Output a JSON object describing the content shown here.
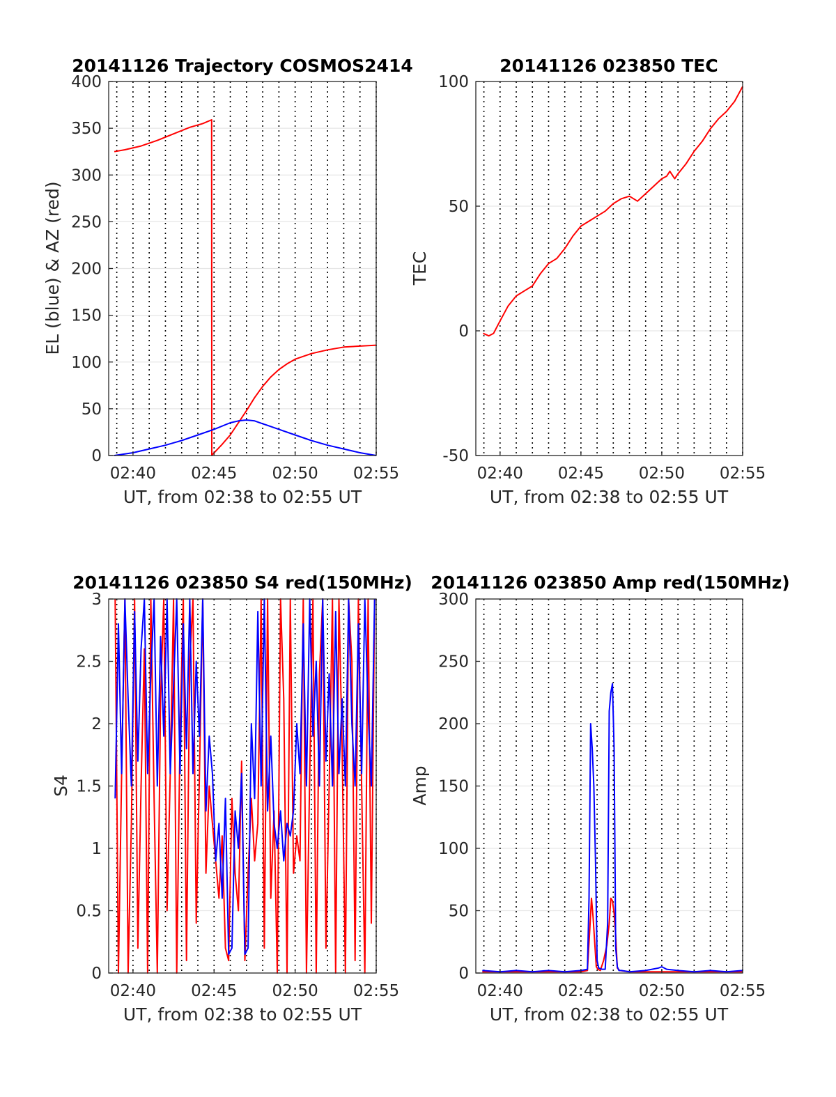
{
  "chart_data": [
    {
      "type": "line",
      "title": "20141126 Trajectory COSMOS2414",
      "xlabel": "UT, from 02:38 to 02:55 UT",
      "ylabel": "EL (blue) & AZ (red)",
      "x_unit": "minutes past 02:00 UT",
      "xlim": [
        38.5,
        55.0
      ],
      "ylim": [
        0,
        400
      ],
      "xticks": [
        40,
        45,
        50,
        55
      ],
      "xtick_labels": [
        "02:40",
        "02:45",
        "02:50",
        "02:55"
      ],
      "yticks": [
        0,
        50,
        100,
        150,
        200,
        250,
        300,
        350,
        400
      ],
      "ytick_labels": [
        "0",
        "50",
        "100",
        "150",
        "200",
        "250",
        "300",
        "350",
        "400"
      ],
      "grid": "dotted vertical lines every minute, horizontal lines at y ticks",
      "series": [
        {
          "color": "#ff0000",
          "x": [
            38.85,
            39.5,
            40.5,
            41.5,
            42.5,
            43.5,
            44.3,
            44.85,
            44.86,
            44.9,
            45.5,
            46.0,
            46.5,
            47.0,
            47.5,
            48.0,
            48.5,
            49.0,
            49.5,
            50.0,
            51.0,
            52.0,
            53.0,
            54.0,
            55.0
          ],
          "y": [
            325,
            327,
            331,
            337,
            344,
            351,
            355,
            359,
            0,
            1,
            12,
            22,
            35,
            48,
            62,
            74,
            84,
            92,
            98,
            103,
            109,
            113,
            116,
            117,
            118
          ]
        },
        {
          "color": "#0000ff",
          "x": [
            38.85,
            40,
            41,
            42,
            43,
            44,
            45,
            46,
            46.5,
            47.0,
            47.5,
            48,
            49,
            50,
            51,
            52,
            53,
            54,
            55
          ],
          "y": [
            0,
            3,
            7,
            11,
            16,
            22,
            28,
            35,
            37,
            38,
            37,
            34,
            28,
            22,
            16,
            11,
            7,
            3,
            0
          ]
        }
      ]
    },
    {
      "type": "line",
      "title": "20141126 023850 TEC",
      "xlabel": "UT, from 02:38 to 02:55 UT",
      "ylabel": "TEC",
      "x_unit": "minutes past 02:00 UT",
      "xlim": [
        38.5,
        55.0
      ],
      "ylim": [
        -50,
        100
      ],
      "xticks": [
        40,
        45,
        50,
        55
      ],
      "xtick_labels": [
        "02:40",
        "02:45",
        "02:50",
        "02:55"
      ],
      "yticks": [
        -50,
        0,
        50,
        100
      ],
      "ytick_labels": [
        "-50",
        "0",
        "50",
        "100"
      ],
      "grid": "dotted vertical lines every minute, horizontal lines at y ticks",
      "series": [
        {
          "color": "#ff0000",
          "x": [
            38.95,
            39.3,
            39.6,
            40.0,
            40.5,
            41.0,
            41.5,
            42.0,
            42.5,
            43.0,
            43.5,
            44.0,
            44.5,
            45.0,
            45.5,
            46.0,
            46.5,
            47.0,
            47.5,
            48.0,
            48.5,
            49.0,
            49.5,
            50.0,
            50.3,
            50.5,
            50.8,
            51.0,
            51.5,
            52.0,
            52.5,
            53.0,
            53.5,
            54.0,
            54.5,
            55.0
          ],
          "y": [
            -1,
            -2,
            -1,
            4,
            10,
            14,
            16,
            18,
            23,
            27,
            29,
            33,
            38,
            42,
            44,
            46,
            48,
            51,
            53,
            54,
            52,
            55,
            58,
            61,
            62,
            64,
            61,
            63,
            67,
            72,
            76,
            81,
            85,
            88,
            92,
            98
          ]
        }
      ]
    },
    {
      "type": "line",
      "title": "20141126 023850 S4 red(150MHz)",
      "xlabel": "UT, from 02:38 to 02:55 UT",
      "ylabel": "S4",
      "x_unit": "minutes past 02:00 UT",
      "xlim": [
        38.5,
        55.0
      ],
      "ylim": [
        0,
        3
      ],
      "xticks": [
        40,
        45,
        50,
        55
      ],
      "xtick_labels": [
        "02:40",
        "02:45",
        "02:50",
        "02:55"
      ],
      "yticks": [
        0,
        0.5,
        1,
        1.5,
        2,
        2.5,
        3
      ],
      "ytick_labels": [
        "0",
        "0.5",
        "1",
        "1.5",
        "2",
        "2.5",
        "3"
      ],
      "grid": "dotted vertical lines every minute, horizontal lines at y ticks",
      "series": [
        {
          "color": "#ff0000",
          "x": [
            38.9,
            39.1,
            39.3,
            39.5,
            39.7,
            39.9,
            40.1,
            40.3,
            40.5,
            40.7,
            40.9,
            41.1,
            41.3,
            41.5,
            41.7,
            41.9,
            42.1,
            42.3,
            42.5,
            42.7,
            42.9,
            43.1,
            43.3,
            43.5,
            43.7,
            43.9,
            44.1,
            44.3,
            44.5,
            44.7,
            44.9,
            45.1,
            45.3,
            45.5,
            45.7,
            45.9,
            46.1,
            46.3,
            46.5,
            46.7,
            46.9,
            47.1,
            47.3,
            47.5,
            47.7,
            47.9,
            48.1,
            48.3,
            48.5,
            48.7,
            48.9,
            49.1,
            49.3,
            49.5,
            49.7,
            49.9,
            50.1,
            50.3,
            50.5,
            50.7,
            50.9,
            51.1,
            51.3,
            51.5,
            51.7,
            51.9,
            52.1,
            52.3,
            52.5,
            52.7,
            52.9,
            53.1,
            53.3,
            53.5,
            53.7,
            53.9,
            54.1,
            54.3,
            54.5,
            54.7,
            54.9
          ],
          "y": [
            3,
            0,
            1.6,
            3,
            0,
            1.2,
            3,
            0.2,
            1.5,
            2.6,
            0,
            3,
            1.4,
            0,
            2.2,
            3,
            0.5,
            1.6,
            3,
            0,
            1.9,
            3,
            0.1,
            2.5,
            3,
            0.4,
            1.6,
            3,
            0.8,
            1.5,
            1.2,
            0.9,
            0.6,
            1.1,
            0.2,
            0.1,
            1.4,
            0.8,
            0.5,
            1.7,
            0.1,
            0.8,
            1.4,
            0.9,
            1.2,
            3,
            0.2,
            3,
            0.6,
            1.3,
            0,
            3,
            2.2,
            0,
            3,
            0.8,
            1.1,
            0.9,
            3,
            0,
            1.6,
            3,
            0,
            2.4,
            3,
            0.2,
            1.5,
            3,
            0,
            3,
            1.8,
            0,
            3,
            2.5,
            0.1,
            3,
            1.5,
            0,
            3,
            0.4,
            3
          ]
        },
        {
          "color": "#0000ff",
          "x": [
            38.9,
            39.1,
            39.3,
            39.5,
            39.7,
            39.9,
            40.1,
            40.3,
            40.5,
            40.7,
            40.9,
            41.1,
            41.3,
            41.5,
            41.7,
            41.9,
            42.1,
            42.3,
            42.5,
            42.7,
            42.9,
            43.1,
            43.3,
            43.5,
            43.7,
            43.9,
            44.1,
            44.3,
            44.5,
            44.7,
            44.9,
            45.1,
            45.3,
            45.5,
            45.7,
            45.9,
            46.1,
            46.3,
            46.5,
            46.7,
            46.9,
            47.1,
            47.3,
            47.5,
            47.7,
            47.9,
            48.1,
            48.3,
            48.5,
            48.7,
            48.9,
            49.1,
            49.3,
            49.5,
            49.7,
            49.9,
            50.1,
            50.3,
            50.5,
            50.7,
            50.9,
            51.1,
            51.3,
            51.5,
            51.7,
            51.9,
            52.1,
            52.3,
            52.5,
            52.7,
            52.9,
            53.1,
            53.3,
            53.5,
            53.7,
            53.9,
            54.1,
            54.3,
            54.5,
            54.7,
            54.9
          ],
          "y": [
            1.4,
            2.8,
            1.6,
            3,
            2.2,
            1.5,
            2.9,
            1.7,
            2.6,
            3,
            1.6,
            2.4,
            3,
            1.5,
            2.7,
            1.9,
            3,
            1.6,
            2.3,
            3,
            1.6,
            2.8,
            1.8,
            3,
            1.6,
            2.5,
            1.9,
            3,
            1.3,
            1.9,
            1.6,
            0.9,
            1.2,
            0.6,
            1.4,
            0.15,
            0.2,
            1.3,
            1.0,
            1.6,
            0.15,
            0.2,
            2.0,
            1.4,
            2.9,
            1.5,
            3,
            1.3,
            1.9,
            1.2,
            1.0,
            1.3,
            0.9,
            1.2,
            1.1,
            1.3,
            2.0,
            1.6,
            2.8,
            1.5,
            3,
            1.9,
            2.5,
            1.5,
            3,
            1.7,
            2.4,
            1.5,
            2.9,
            1.6,
            2.2,
            1.5,
            3,
            2.0,
            1.5,
            2.8,
            1.6,
            3,
            2.1,
            1.5,
            3
          ]
        }
      ]
    },
    {
      "type": "line",
      "title": "20141126 023850 Amp red(150MHz)",
      "xlabel": "UT, from 02:38 to 02:55 UT",
      "ylabel": "Amp",
      "x_unit": "minutes past 02:00 UT",
      "xlim": [
        38.5,
        55.0
      ],
      "ylim": [
        0,
        300
      ],
      "xticks": [
        40,
        45,
        50,
        55
      ],
      "xtick_labels": [
        "02:40",
        "02:45",
        "02:50",
        "02:55"
      ],
      "yticks": [
        0,
        50,
        100,
        150,
        200,
        250,
        300
      ],
      "ytick_labels": [
        "0",
        "50",
        "100",
        "150",
        "200",
        "250",
        "300"
      ],
      "grid": "dotted vertical lines every minute, horizontal lines at y ticks",
      "series": [
        {
          "color": "#ff0000",
          "x": [
            38.9,
            42.0,
            45.0,
            45.4,
            45.55,
            45.65,
            45.75,
            45.85,
            45.95,
            46.05,
            46.2,
            46.4,
            46.6,
            46.75,
            46.85,
            46.95,
            47.05,
            47.15,
            47.25,
            47.4,
            48.0,
            52.0,
            55.0
          ],
          "y": [
            1,
            1,
            1,
            2,
            35,
            60,
            45,
            25,
            5,
            3,
            2,
            10,
            22,
            40,
            60,
            58,
            48,
            30,
            4,
            2,
            1,
            1,
            1
          ]
        },
        {
          "color": "#0000ff",
          "x": [
            38.9,
            40.0,
            41.0,
            42.0,
            43.0,
            44.0,
            45.0,
            45.4,
            45.5,
            45.6,
            45.7,
            45.8,
            45.9,
            46.0,
            46.1,
            46.3,
            46.5,
            46.65,
            46.75,
            46.85,
            46.95,
            47.05,
            47.15,
            47.25,
            47.35,
            47.5,
            48.0,
            49.0,
            49.8,
            50.0,
            50.3,
            51.0,
            52.0,
            53.0,
            54.0,
            55.0
          ],
          "y": [
            2,
            1,
            2,
            1,
            2,
            1,
            2,
            3,
            60,
            200,
            180,
            150,
            90,
            10,
            4,
            3,
            3,
            40,
            210,
            225,
            232,
            180,
            20,
            5,
            2,
            2,
            1,
            2,
            4,
            5,
            3,
            2,
            1,
            2,
            1,
            2
          ]
        }
      ]
    }
  ]
}
